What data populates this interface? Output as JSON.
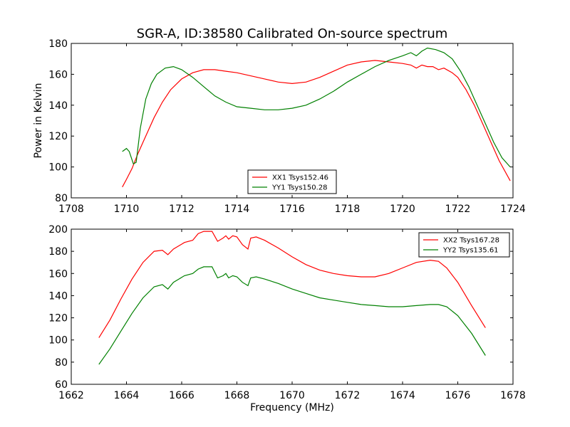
{
  "figure": {
    "title": "SGR-A, ID:38580 Calibrated On-source spectrum"
  },
  "chart_data": [
    {
      "type": "line",
      "title": "SGR-A, ID:38580 Calibrated On-source spectrum",
      "xlabel": "",
      "ylabel": "Power in Kelvin",
      "xlim": [
        1708,
        1724
      ],
      "ylim": [
        80,
        180
      ],
      "xticks": [
        1708,
        1710,
        1712,
        1714,
        1716,
        1718,
        1720,
        1722,
        1724
      ],
      "yticks": [
        80,
        100,
        120,
        140,
        160,
        180
      ],
      "grid": false,
      "legend_position": "lower-center",
      "series": [
        {
          "name": "XX1 Tsys152.46",
          "color": "#ff0000",
          "x": [
            1709.85,
            1710.0,
            1710.2,
            1710.4,
            1710.6,
            1710.8,
            1711.0,
            1711.3,
            1711.6,
            1712.0,
            1712.4,
            1712.8,
            1713.2,
            1713.6,
            1714.0,
            1714.5,
            1715.0,
            1715.5,
            1716.0,
            1716.5,
            1717.0,
            1717.5,
            1718.0,
            1718.5,
            1719.0,
            1719.5,
            1720.0,
            1720.3,
            1720.5,
            1720.7,
            1720.9,
            1721.1,
            1721.3,
            1721.5,
            1721.8,
            1722.0,
            1722.3,
            1722.6,
            1722.9,
            1723.2,
            1723.5,
            1723.9
          ],
          "y": [
            87,
            92,
            99,
            108,
            116,
            124,
            132,
            142,
            150,
            157,
            161,
            163,
            163,
            162,
            161,
            159,
            157,
            155,
            154,
            155,
            158,
            162,
            166,
            168,
            169,
            168,
            167,
            166,
            164,
            166,
            165,
            165,
            163,
            164,
            161,
            158,
            150,
            140,
            128,
            116,
            104,
            91
          ]
        },
        {
          "name": "YY1 Tsys150.28",
          "color": "#008000",
          "x": [
            1709.85,
            1710.0,
            1710.1,
            1710.25,
            1710.35,
            1710.5,
            1710.7,
            1710.9,
            1711.1,
            1711.4,
            1711.7,
            1712.0,
            1712.4,
            1712.8,
            1713.2,
            1713.6,
            1714.0,
            1714.5,
            1715.0,
            1715.5,
            1716.0,
            1716.5,
            1717.0,
            1717.5,
            1718.0,
            1718.5,
            1719.0,
            1719.5,
            1720.0,
            1720.3,
            1720.5,
            1720.7,
            1720.9,
            1721.2,
            1721.5,
            1721.8,
            1722.1,
            1722.4,
            1722.7,
            1723.0,
            1723.3,
            1723.6,
            1723.9
          ],
          "y": [
            110,
            112,
            110,
            102,
            103,
            125,
            144,
            154,
            160,
            164,
            165,
            163,
            158,
            152,
            146,
            142,
            139,
            138,
            137,
            137,
            138,
            140,
            144,
            149,
            155,
            160,
            165,
            169,
            172,
            174,
            172,
            175,
            177,
            176,
            174,
            170,
            162,
            152,
            140,
            128,
            116,
            106,
            100
          ]
        }
      ]
    },
    {
      "type": "line",
      "title": "",
      "xlabel": "Frequency (MHz)",
      "ylabel": "",
      "xlim": [
        1662,
        1678
      ],
      "ylim": [
        60,
        200
      ],
      "xticks": [
        1662,
        1664,
        1666,
        1668,
        1670,
        1672,
        1674,
        1676,
        1678
      ],
      "yticks": [
        60,
        80,
        100,
        120,
        140,
        160,
        180,
        200
      ],
      "grid": false,
      "legend_position": "upper-right",
      "series": [
        {
          "name": "XX2 Tsys167.28",
          "color": "#ff0000",
          "x": [
            1663.0,
            1663.4,
            1663.8,
            1664.2,
            1664.6,
            1665.0,
            1665.3,
            1665.5,
            1665.7,
            1665.9,
            1666.1,
            1666.4,
            1666.6,
            1666.8,
            1667.1,
            1667.3,
            1667.5,
            1667.6,
            1667.7,
            1667.85,
            1668.0,
            1668.2,
            1668.4,
            1668.5,
            1668.7,
            1669.0,
            1669.5,
            1670.0,
            1670.5,
            1671.0,
            1671.5,
            1672.0,
            1672.5,
            1673.0,
            1673.5,
            1674.0,
            1674.5,
            1675.0,
            1675.3,
            1675.6,
            1676.0,
            1676.5,
            1677.0
          ],
          "y": [
            102,
            118,
            137,
            155,
            170,
            180,
            181,
            177,
            182,
            185,
            188,
            190,
            196,
            198,
            198,
            189,
            192,
            194,
            191,
            194,
            193,
            186,
            182,
            192,
            193,
            190,
            183,
            175,
            168,
            163,
            160,
            158,
            157,
            157,
            160,
            165,
            170,
            172,
            171,
            165,
            152,
            131,
            111
          ]
        },
        {
          "name": "YY2 Tsys135.61",
          "color": "#008000",
          "x": [
            1663.0,
            1663.4,
            1663.8,
            1664.2,
            1664.6,
            1665.0,
            1665.3,
            1665.5,
            1665.7,
            1665.9,
            1666.1,
            1666.4,
            1666.6,
            1666.8,
            1667.1,
            1667.3,
            1667.5,
            1667.6,
            1667.7,
            1667.85,
            1668.0,
            1668.2,
            1668.4,
            1668.5,
            1668.7,
            1669.0,
            1669.5,
            1670.0,
            1670.5,
            1671.0,
            1671.5,
            1672.0,
            1672.5,
            1673.0,
            1673.5,
            1674.0,
            1674.5,
            1675.0,
            1675.3,
            1675.6,
            1676.0,
            1676.5,
            1677.0
          ],
          "y": [
            78,
            92,
            108,
            124,
            138,
            148,
            150,
            146,
            152,
            155,
            158,
            160,
            164,
            166,
            166,
            156,
            158,
            160,
            156,
            158,
            157,
            152,
            149,
            156,
            157,
            155,
            151,
            146,
            142,
            138,
            136,
            134,
            132,
            131,
            130,
            130,
            131,
            132,
            132,
            130,
            122,
            106,
            86
          ]
        }
      ]
    }
  ]
}
